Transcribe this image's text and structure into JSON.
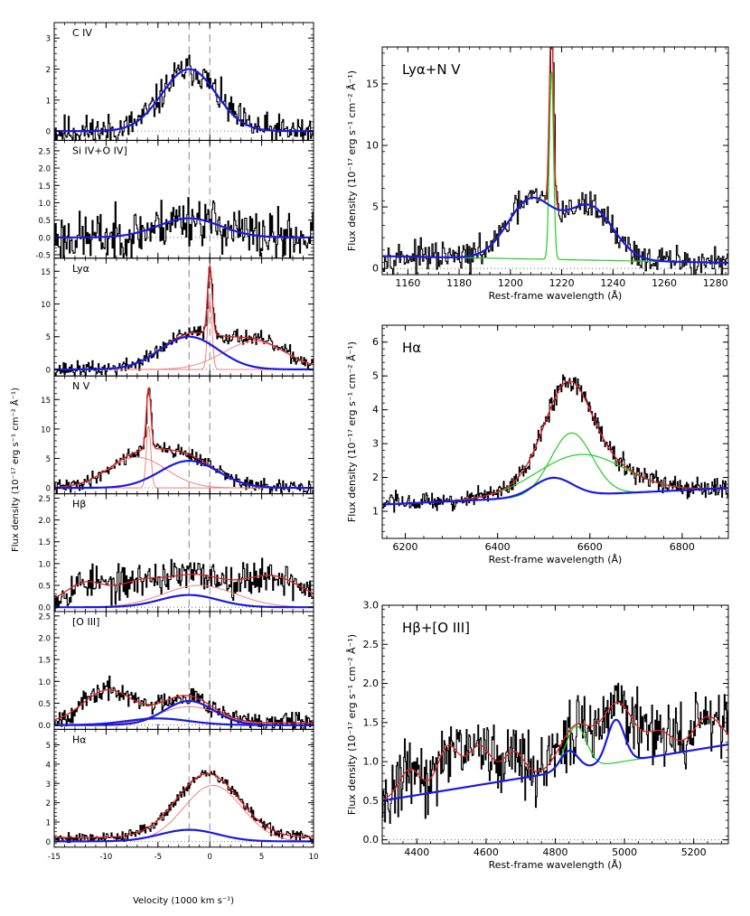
{
  "figure": {
    "left_column_ylabel": "Flux density (10⁻¹⁷ erg s⁻¹ cm⁻² Å⁻¹)",
    "left_column_xlabel": "Velocity (1000 km s⁻¹)"
  },
  "colors": {
    "data": "#000000",
    "total_fit": "#e02020",
    "component_fit": "#f08080",
    "broad_component": "#1a1adf",
    "narrow_component": "#22cc22",
    "reference_line": "#888888"
  },
  "chart_data": [
    {
      "type": "line",
      "panel": "velocity",
      "title": "C IV",
      "xlim": [
        -15,
        10
      ],
      "ylim": [
        -0.3,
        3.5
      ],
      "yticks": [
        0,
        1,
        2,
        3
      ],
      "xticks": [
        -15,
        -10,
        -5,
        0,
        5,
        10
      ],
      "vlines": [
        -2,
        0
      ],
      "series": [
        {
          "role": "data",
          "noise": 0.4,
          "seed": 11
        },
        {
          "role": "broad",
          "gauss": [
            [
              2.0,
              -2.0,
              2.6
            ]
          ]
        }
      ]
    },
    {
      "type": "line",
      "panel": "velocity",
      "title": "Si IV+O IV]",
      "xlim": [
        -15,
        10
      ],
      "ylim": [
        -0.6,
        2.8
      ],
      "yticks": [
        -0.5,
        0.0,
        0.5,
        1.0,
        1.5,
        2.0,
        2.5
      ],
      "xticks": [
        -15,
        -10,
        -5,
        0,
        5,
        10
      ],
      "vlines": [
        -2,
        0
      ],
      "series": [
        {
          "role": "data",
          "noise": 0.55,
          "seed": 23
        },
        {
          "role": "broad",
          "gauss": [
            [
              0.55,
              -2.0,
              3.0
            ]
          ]
        }
      ]
    },
    {
      "type": "line",
      "panel": "velocity",
      "title": "Lyα",
      "xlim": [
        -15,
        10
      ],
      "ylim": [
        -1,
        17
      ],
      "yticks": [
        0,
        5,
        10,
        15
      ],
      "xticks": [
        -15,
        -10,
        -5,
        0,
        5,
        10
      ],
      "vlines": [
        -2,
        0
      ],
      "series": [
        {
          "role": "data",
          "noise": 0.9,
          "seed": 37
        },
        {
          "role": "component",
          "gauss": [
            [
              4.3,
              4.3,
              3.0
            ]
          ]
        },
        {
          "role": "component",
          "gauss": [
            [
              10.5,
              0.0,
              0.22
            ]
          ]
        },
        {
          "role": "broad",
          "gauss": [
            [
              5.0,
              -2.0,
              2.8
            ]
          ]
        },
        {
          "role": "total",
          "gauss": [
            [
              5.0,
              -2.0,
              2.8
            ],
            [
              10.5,
              0.0,
              0.22
            ],
            [
              4.3,
              4.3,
              3.0
            ]
          ]
        }
      ]
    },
    {
      "type": "line",
      "panel": "velocity",
      "title": "N V",
      "xlim": [
        -15,
        10
      ],
      "ylim": [
        -1,
        19
      ],
      "yticks": [
        0,
        5,
        10,
        15
      ],
      "xticks": [
        -15,
        -10,
        -5,
        0,
        5,
        10
      ],
      "vlines": [
        -2,
        0
      ],
      "series": [
        {
          "role": "data",
          "noise": 0.9,
          "seed": 41
        },
        {
          "role": "component",
          "gauss": [
            [
              5.2,
              -7.0,
              2.8
            ]
          ]
        },
        {
          "role": "component",
          "gauss": [
            [
              10.5,
              -5.9,
              0.22
            ]
          ]
        },
        {
          "role": "broad",
          "gauss": [
            [
              4.6,
              -2.0,
              2.8
            ]
          ]
        },
        {
          "role": "total",
          "gauss": [
            [
              5.2,
              -7.0,
              2.8
            ],
            [
              10.5,
              -5.9,
              0.22
            ],
            [
              4.6,
              -2.0,
              2.8
            ]
          ]
        }
      ]
    },
    {
      "type": "line",
      "panel": "velocity",
      "title": "Hβ",
      "xlim": [
        -15,
        10
      ],
      "ylim": [
        -0.1,
        2.6
      ],
      "yticks": [
        0.0,
        0.5,
        1.0,
        1.5,
        2.0,
        2.5
      ],
      "xticks": [
        -15,
        -10,
        -5,
        0,
        5,
        10
      ],
      "vlines": [
        -2,
        0
      ],
      "series": [
        {
          "role": "data",
          "noise": 0.3,
          "seed": 53
        },
        {
          "role": "component",
          "gauss": [
            [
              0.5,
              -1.0,
              3.5
            ]
          ]
        },
        {
          "role": "broad",
          "gauss": [
            [
              0.28,
              -2.0,
              2.8
            ]
          ]
        },
        {
          "role": "total",
          "base": 0.1,
          "gauss": [
            [
              0.45,
              -12.0,
              1.8
            ],
            [
              0.4,
              -7.0,
              2.2
            ],
            [
              0.62,
              -1.5,
              3.0
            ],
            [
              0.6,
              6.0,
              2.8
            ]
          ]
        }
      ]
    },
    {
      "type": "line",
      "panel": "velocity",
      "title": "[O III]",
      "xlim": [
        -15,
        10
      ],
      "ylim": [
        -0.1,
        2.6
      ],
      "yticks": [
        0.0,
        0.5,
        1.0,
        1.5,
        2.0,
        2.5
      ],
      "xticks": [
        -15,
        -10,
        -5,
        0,
        5,
        10
      ],
      "vlines": [
        -2,
        0
      ],
      "series": [
        {
          "role": "data",
          "noise": 0.18,
          "seed": 67
        },
        {
          "role": "component",
          "gauss": [
            [
              0.42,
              -2.0,
              3.0
            ]
          ]
        },
        {
          "role": "broad",
          "gauss": [
            [
              0.15,
              -5.0,
              3.0
            ]
          ]
        },
        {
          "role": "broad",
          "gauss": [
            [
              0.55,
              -2.0,
              2.4
            ]
          ]
        },
        {
          "role": "total",
          "base": 0.05,
          "gauss": [
            [
              0.75,
              -9.8,
              2.4
            ],
            [
              0.62,
              -2.3,
              2.5
            ]
          ]
        }
      ]
    },
    {
      "type": "line",
      "panel": "velocity",
      "title": "Hα",
      "xlim": [
        -15,
        10
      ],
      "ylim": [
        -0.3,
        5.8
      ],
      "yticks": [
        0,
        1,
        2,
        3,
        4,
        5
      ],
      "xticks": [
        -15,
        -10,
        -5,
        0,
        5,
        10
      ],
      "vlines": [
        -2,
        0
      ],
      "series": [
        {
          "role": "data",
          "noise": 0.22,
          "seed": 79
        },
        {
          "role": "component",
          "gauss": [
            [
              2.9,
              0.3,
              2.8
            ]
          ]
        },
        {
          "role": "broad",
          "gauss": [
            [
              0.6,
              -2.0,
              2.8
            ]
          ]
        },
        {
          "role": "total",
          "base": 0.2,
          "gauss": [
            [
              3.3,
              -0.2,
              3.0
            ]
          ]
        }
      ]
    },
    {
      "type": "line",
      "panel": "wavelength",
      "title": "Lyα+N V",
      "xlabel": "Rest-frame wavelength (Å)",
      "ylabel": "Flux density (10⁻¹⁷ erg s⁻¹ cm⁻² Å⁻¹)",
      "xlim": [
        1150,
        1285
      ],
      "ylim": [
        -0.5,
        18
      ],
      "xticks": [
        1160,
        1180,
        1200,
        1220,
        1240,
        1260,
        1280
      ],
      "yticks": [
        0,
        5,
        10,
        15
      ],
      "series": [
        {
          "role": "data",
          "noise": 0.9,
          "seed": 97,
          "base": 1.0,
          "slope": -0.004,
          "x0": 1150,
          "gauss": [
            [
              4.8,
              1208,
              9
            ],
            [
              15.5,
              1216,
              0.8
            ],
            [
              4.3,
              1231,
              9
            ]
          ]
        },
        {
          "role": "narrow",
          "base": 1.0,
          "slope": -0.004,
          "x0": 1150,
          "gauss": [
            [
              15.5,
              1216,
              0.8
            ]
          ]
        },
        {
          "role": "broad",
          "base": 1.0,
          "slope": -0.004,
          "x0": 1150,
          "gauss": [
            [
              4.8,
              1208,
              9
            ],
            [
              4.3,
              1231,
              9
            ]
          ]
        },
        {
          "role": "total",
          "base": 1.0,
          "slope": -0.004,
          "x0": 1150,
          "gauss": [
            [
              4.8,
              1208,
              9
            ],
            [
              15.5,
              1216,
              0.8
            ],
            [
              4.3,
              1231,
              9
            ]
          ]
        }
      ]
    },
    {
      "type": "line",
      "panel": "wavelength",
      "title": "Hα",
      "xlabel": "Rest-frame wavelength (Å)",
      "ylabel": "Flux density (10⁻¹⁷ erg s⁻¹ cm⁻² Å⁻¹)",
      "xlim": [
        6150,
        6900
      ],
      "ylim": [
        0.2,
        6.5
      ],
      "xticks": [
        6200,
        6400,
        6600,
        6800
      ],
      "yticks": [
        1,
        2,
        3,
        4,
        5,
        6
      ],
      "series": [
        {
          "role": "data",
          "noise": 0.22,
          "seed": 103,
          "base": 1.2,
          "slope": 0.00065,
          "x0": 6150,
          "gauss": [
            [
              1.85,
              6560,
              45
            ],
            [
              1.2,
              6580,
              95
            ],
            [
              0.55,
              6520,
              42
            ]
          ]
        },
        {
          "role": "component",
          "base": 1.2,
          "slope": 0.00065,
          "x0": 6150,
          "gauss": [
            [
              0.55,
              6520,
              42
            ]
          ]
        },
        {
          "role": "narrow",
          "base": 1.2,
          "slope": 0.00065,
          "x0": 6150,
          "gauss": [
            [
              1.85,
              6560,
              45
            ]
          ]
        },
        {
          "role": "narrow",
          "base": 1.2,
          "slope": 0.00065,
          "x0": 6150,
          "gauss": [
            [
              1.2,
              6580,
              95
            ]
          ]
        },
        {
          "role": "broad",
          "base": 1.2,
          "slope": 0.00065,
          "x0": 6150,
          "gauss": [
            [
              0.55,
              6520,
              42
            ]
          ]
        },
        {
          "role": "total",
          "base": 1.2,
          "slope": 0.00065,
          "x0": 6150,
          "gauss": [
            [
              1.85,
              6560,
              45
            ],
            [
              1.2,
              6580,
              95
            ],
            [
              0.55,
              6520,
              42
            ]
          ]
        }
      ]
    },
    {
      "type": "line",
      "panel": "wavelength",
      "title": "Hβ+[O III]",
      "xlabel": "Rest-frame wavelength (Å)",
      "ylabel": "Flux density (10⁻¹⁷ erg s⁻¹ cm⁻² Å⁻¹)",
      "xlim": [
        4300,
        5300
      ],
      "ylim": [
        -0.05,
        3.0
      ],
      "xticks": [
        4400,
        4600,
        4800,
        5000,
        5200
      ],
      "yticks": [
        0.0,
        0.5,
        1.0,
        1.5,
        2.0,
        2.5,
        3.0
      ],
      "series": [
        {
          "role": "data",
          "noise": 0.32,
          "seed": 131,
          "base": 0.5,
          "slope": 0.00072,
          "x0": 4300,
          "gauss": [
            [
              0.35,
              4380,
              30
            ],
            [
              0.55,
              4490,
              30
            ],
            [
              0.5,
              4580,
              35
            ],
            [
              0.35,
              4680,
              30
            ],
            [
              0.55,
              4860,
              45
            ],
            [
              0.75,
              4980,
              45
            ],
            [
              0.3,
              5100,
              40
            ],
            [
              0.4,
              5240,
              40
            ]
          ]
        },
        {
          "role": "narrow",
          "base": 0.5,
          "slope": 0.00072,
          "x0": 4300,
          "gauss": [
            [
              0.55,
              4860,
              30
            ]
          ]
        },
        {
          "role": "broad",
          "base": 0.5,
          "slope": 0.00072,
          "x0": 4300,
          "gauss": [
            [
              0.25,
              4840,
              25
            ],
            [
              0.55,
              4975,
              25
            ]
          ]
        },
        {
          "role": "total",
          "base": 0.5,
          "slope": 0.00072,
          "x0": 4300,
          "gauss": [
            [
              0.35,
              4380,
              30
            ],
            [
              0.55,
              4490,
              30
            ],
            [
              0.5,
              4580,
              35
            ],
            [
              0.35,
              4680,
              30
            ],
            [
              0.55,
              4860,
              45
            ],
            [
              0.75,
              4980,
              45
            ],
            [
              0.3,
              5100,
              40
            ],
            [
              0.4,
              5240,
              40
            ]
          ]
        }
      ]
    }
  ]
}
